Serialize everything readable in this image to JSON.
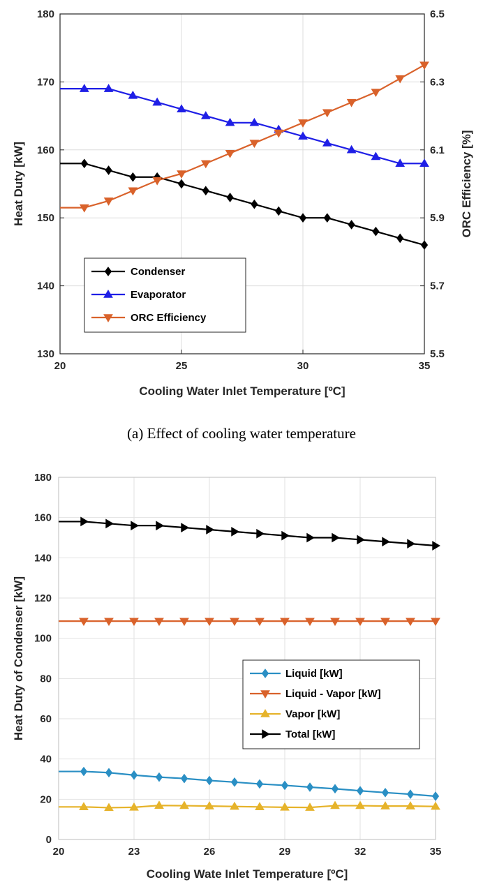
{
  "chart_data": [
    {
      "type": "line",
      "caption": "(a) Effect of cooling water temperature",
      "xlabel": "Cooling Water Inlet Temperature [ºC]",
      "ylabel": "Heat Duty [kW]",
      "y2label": "ORC Efficiency [%]",
      "xlim": [
        20,
        35
      ],
      "ylim": [
        130,
        180
      ],
      "y2lim": [
        5.5,
        6.5
      ],
      "xticks": [
        "20",
        "25",
        "30",
        "35"
      ],
      "yticks": [
        "130",
        "140",
        "150",
        "160",
        "170",
        "180"
      ],
      "y2ticks": [
        "5.5",
        "5.7",
        "5.9",
        "6.1",
        "6.3",
        "6.5"
      ],
      "grid": true,
      "legend_position": "bottom-left",
      "x": [
        20,
        21,
        22,
        23,
        24,
        25,
        26,
        27,
        28,
        29,
        30,
        31,
        32,
        33,
        34,
        35
      ],
      "series": [
        {
          "name": "Condenser",
          "axis": "left",
          "marker": "diamond",
          "color": "#000000",
          "values": [
            158,
            158,
            157,
            156,
            156,
            155,
            154,
            153,
            152,
            151,
            150,
            150,
            149,
            148,
            147,
            146
          ]
        },
        {
          "name": "Evaporator",
          "axis": "left",
          "marker": "triangle-up",
          "color": "#1f1fe6",
          "values": [
            169,
            169,
            169,
            168,
            167,
            166,
            165,
            164,
            164,
            163,
            162,
            161,
            160,
            159,
            158,
            158
          ]
        },
        {
          "name": "ORC Efficiency",
          "axis": "right",
          "marker": "triangle-down",
          "color": "#d9622b",
          "values": [
            5.93,
            5.93,
            5.95,
            5.98,
            6.01,
            6.03,
            6.06,
            6.09,
            6.12,
            6.15,
            6.18,
            6.21,
            6.24,
            6.27,
            6.31,
            6.35
          ]
        }
      ]
    },
    {
      "type": "line",
      "xlabel": "Cooling Wate Inlet Temperature [ºC]",
      "ylabel": "Heat Duty of Condenser [kW]",
      "xlim": [
        20,
        35
      ],
      "ylim": [
        0,
        180
      ],
      "xticks": [
        "20",
        "23",
        "26",
        "29",
        "32",
        "35"
      ],
      "yticks": [
        "0",
        "20",
        "40",
        "60",
        "80",
        "100",
        "120",
        "140",
        "160",
        "180"
      ],
      "grid": true,
      "legend_position": "middle-right",
      "x": [
        20,
        21,
        22,
        23,
        24,
        25,
        26,
        27,
        28,
        29,
        30,
        31,
        32,
        33,
        34,
        35
      ],
      "series": [
        {
          "name": "Liquid [kW]",
          "marker": "diamond",
          "color": "#2a8fc4",
          "values": [
            33.8,
            33.8,
            33.2,
            32.0,
            31.0,
            30.3,
            29.3,
            28.5,
            27.6,
            26.9,
            26.0,
            25.2,
            24.2,
            23.3,
            22.5,
            21.5
          ]
        },
        {
          "name": "Liquid - Vapor [kW]",
          "marker": "triangle-down",
          "color": "#d9622b",
          "values": [
            108.5,
            108.5,
            108.5,
            108.5,
            108.5,
            108.5,
            108.5,
            108.5,
            108.5,
            108.5,
            108.5,
            108.5,
            108.5,
            108.5,
            108.5,
            108.5
          ]
        },
        {
          "name": "Vapor [kW]",
          "marker": "triangle-up",
          "color": "#e6b32a",
          "values": [
            16.2,
            16.2,
            15.8,
            16.0,
            16.9,
            16.8,
            16.6,
            16.4,
            16.2,
            16.0,
            15.9,
            16.8,
            16.8,
            16.6,
            16.6,
            16.4
          ]
        },
        {
          "name": "Total [kW]",
          "marker": "triangle-right",
          "color": "#000000",
          "values": [
            158,
            158,
            157,
            156,
            156,
            155,
            154,
            153,
            152,
            151,
            150,
            150,
            149,
            148,
            147,
            146
          ]
        }
      ]
    }
  ]
}
